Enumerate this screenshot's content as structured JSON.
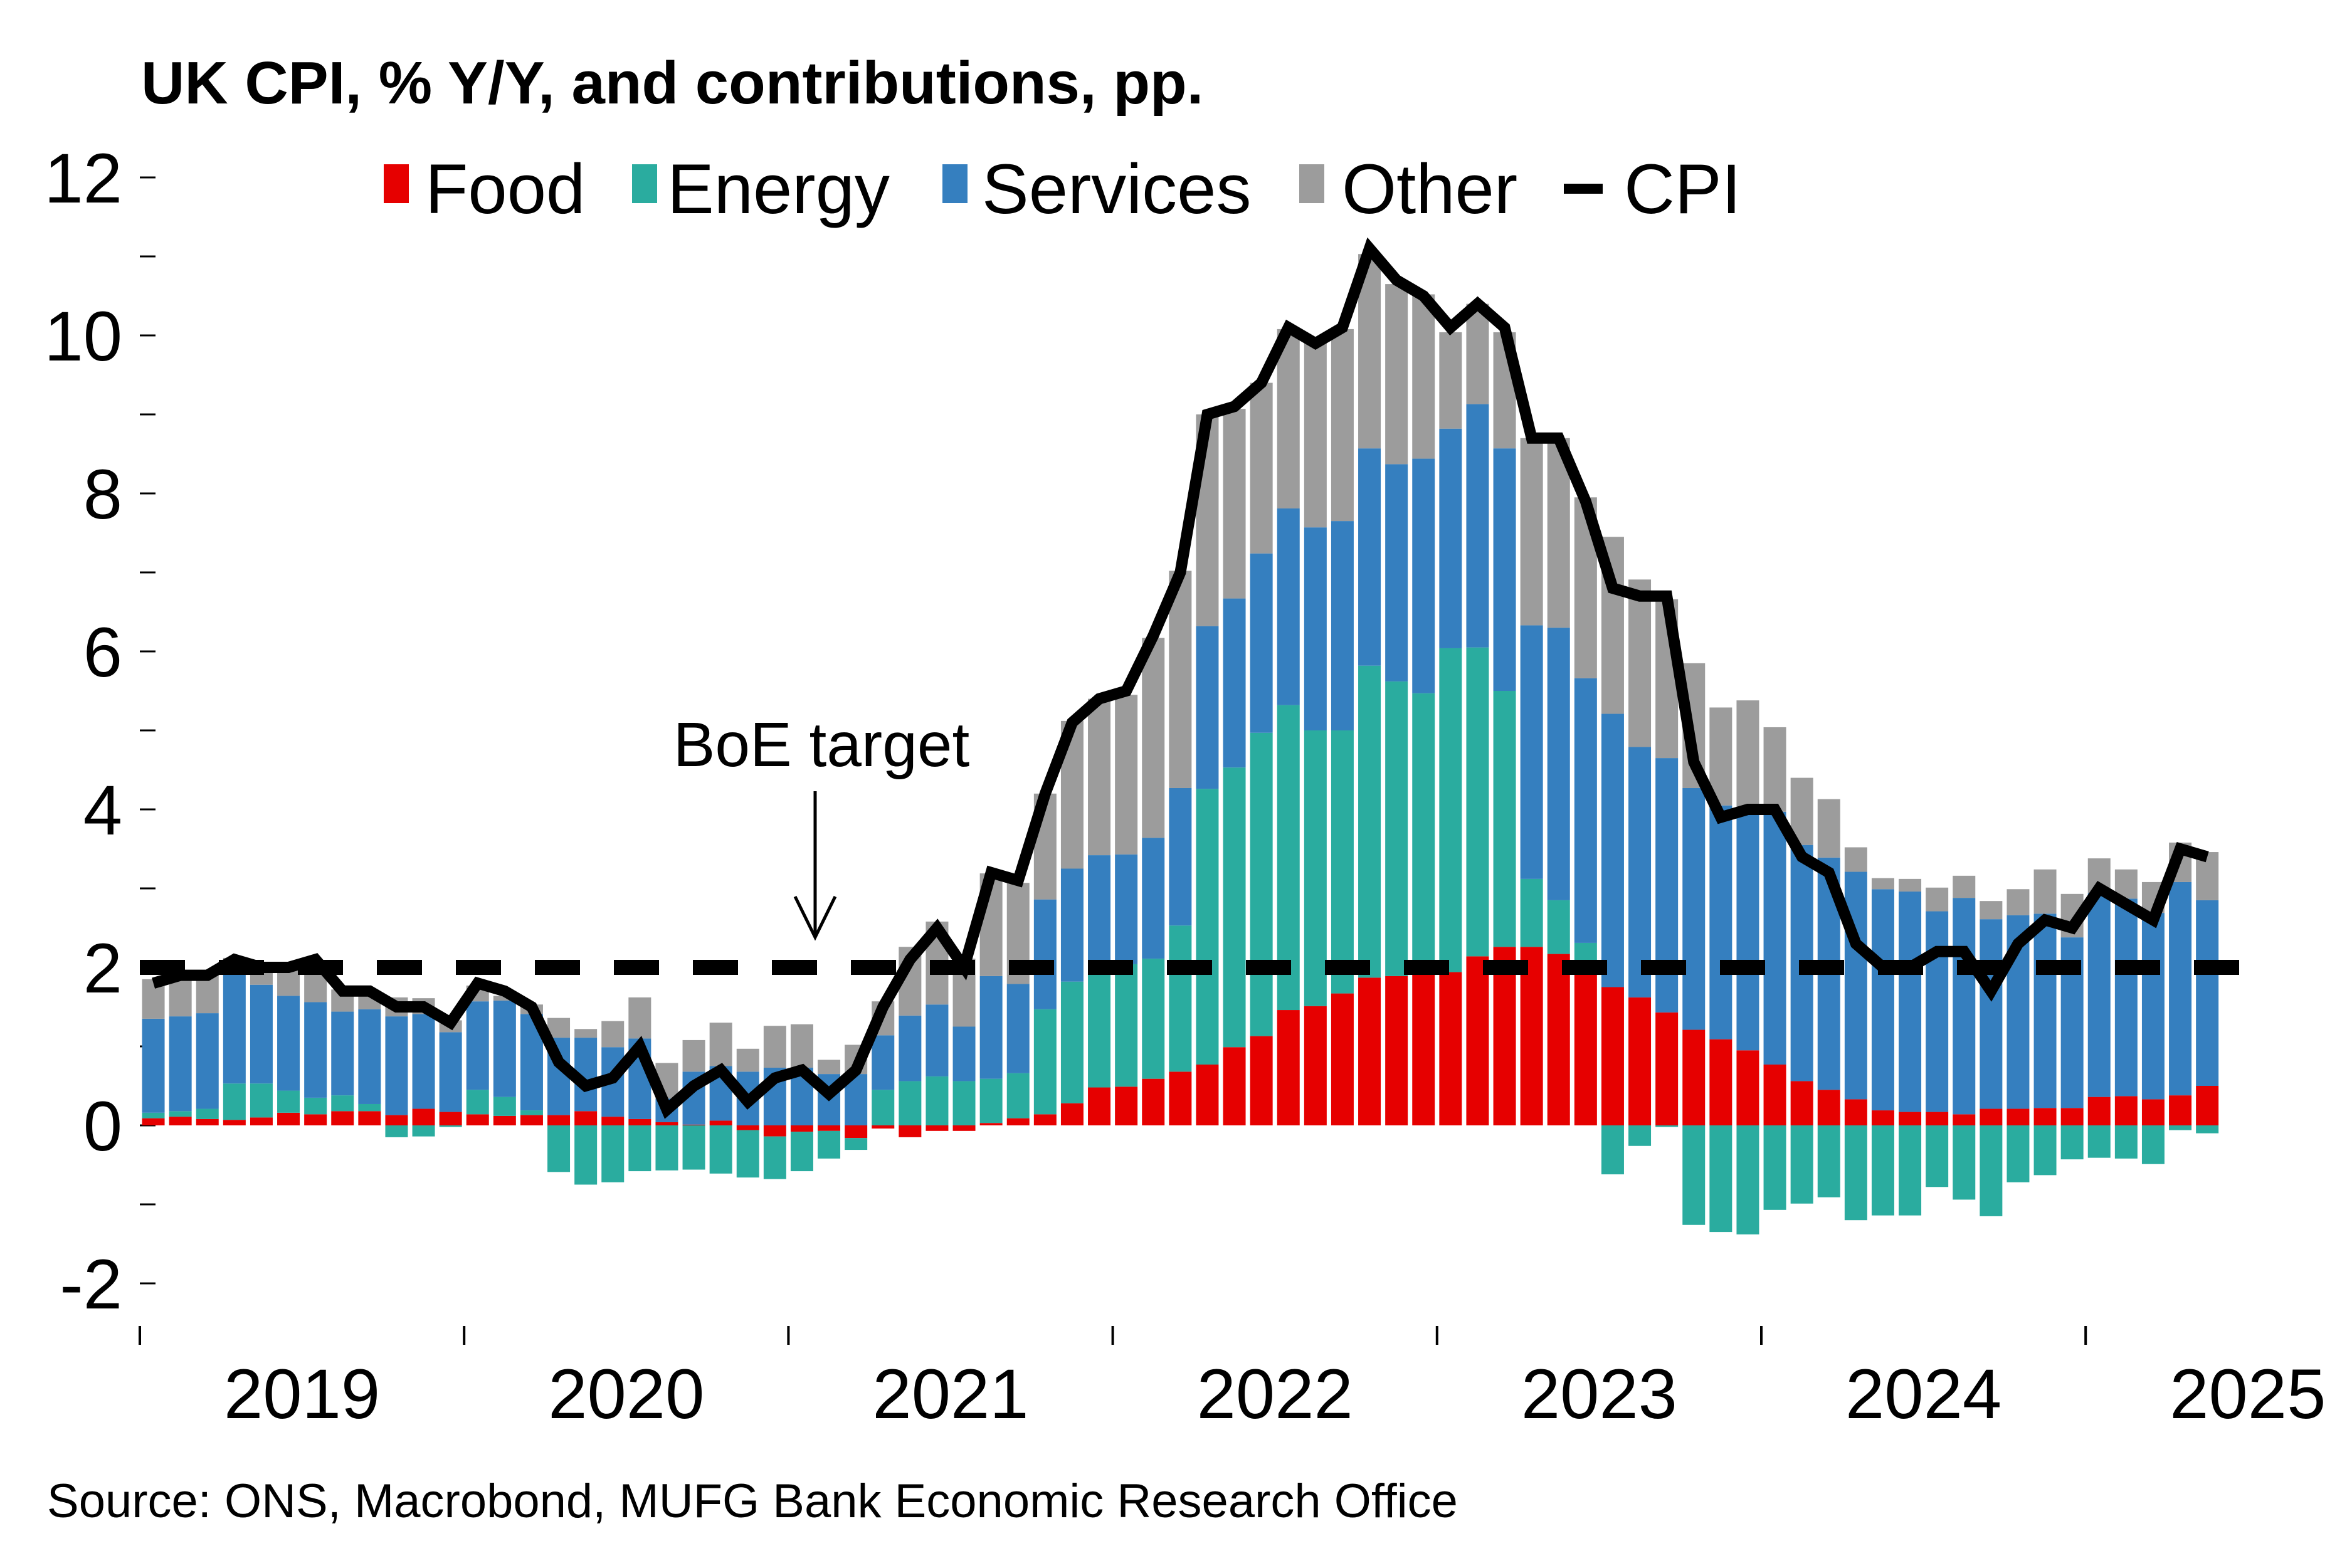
{
  "chart_data": {
    "type": "bar",
    "subtype": "stacked-bar-with-line",
    "title": "UK CPI, % Y/Y, and contributions, pp.",
    "source": "Source: ONS, Macrobond, MUFG Bank Economic Research Office",
    "xlabel": "",
    "ylabel": "",
    "ylim": [
      -2.5,
      12
    ],
    "yticks": [
      -2,
      0,
      2,
      4,
      6,
      8,
      10,
      12
    ],
    "ytick_labels": [
      "-2",
      "0",
      "2",
      "4",
      "6",
      "8",
      "10",
      "12"
    ],
    "x_start": "2019-01",
    "x_end": "2025-05",
    "xtick_labels": [
      "2019",
      "2020",
      "2021",
      "2022",
      "2023",
      "2024",
      "2025"
    ],
    "grid": false,
    "legend": {
      "placement": "top",
      "entries": [
        "Food",
        "Energy",
        "Services",
        "Other",
        "CPI"
      ]
    },
    "colors": {
      "Food": "#e60000",
      "Energy": "#2aac9f",
      "Services": "#357fbf",
      "Other": "#9c9c9c",
      "CPI": "#000000",
      "target": "#000000"
    },
    "reference_line": {
      "label": "BoE target",
      "value": 2,
      "style": "dashed"
    },
    "annotation": {
      "text": "BoE target",
      "points_to": "2020-11"
    },
    "months": [
      "2019-01",
      "2019-02",
      "2019-03",
      "2019-04",
      "2019-05",
      "2019-06",
      "2019-07",
      "2019-08",
      "2019-09",
      "2019-10",
      "2019-11",
      "2019-12",
      "2020-01",
      "2020-02",
      "2020-03",
      "2020-04",
      "2020-05",
      "2020-06",
      "2020-07",
      "2020-08",
      "2020-09",
      "2020-10",
      "2020-11",
      "2020-12",
      "2021-01",
      "2021-02",
      "2021-03",
      "2021-04",
      "2021-05",
      "2021-06",
      "2021-07",
      "2021-08",
      "2021-09",
      "2021-10",
      "2021-11",
      "2021-12",
      "2022-01",
      "2022-02",
      "2022-03",
      "2022-04",
      "2022-05",
      "2022-06",
      "2022-07",
      "2022-08",
      "2022-09",
      "2022-10",
      "2022-11",
      "2022-12",
      "2023-01",
      "2023-02",
      "2023-03",
      "2023-04",
      "2023-05",
      "2023-06",
      "2023-07",
      "2023-08",
      "2023-09",
      "2023-10",
      "2023-11",
      "2023-12",
      "2024-01",
      "2024-02",
      "2024-03",
      "2024-04",
      "2024-05",
      "2024-06",
      "2024-07",
      "2024-08",
      "2024-09",
      "2024-10",
      "2024-11",
      "2024-12",
      "2025-01",
      "2025-02",
      "2025-03",
      "2025-04",
      "2025-05"
    ],
    "series": [
      {
        "name": "Food",
        "kind": "bar",
        "values": [
          0.09,
          0.11,
          0.08,
          0.07,
          0.1,
          0.16,
          0.14,
          0.18,
          0.18,
          0.13,
          0.21,
          0.17,
          0.14,
          0.12,
          0.13,
          0.13,
          0.18,
          0.11,
          0.08,
          0.04,
          0.01,
          0.06,
          -0.06,
          -0.14,
          -0.08,
          -0.07,
          -0.16,
          -0.04,
          -0.15,
          -0.07,
          -0.07,
          0.03,
          0.09,
          0.14,
          0.28,
          0.48,
          0.49,
          0.59,
          0.68,
          0.77,
          0.99,
          1.13,
          1.46,
          1.51,
          1.67,
          1.87,
          1.89,
          1.94,
          1.94,
          2.14,
          2.26,
          2.26,
          2.17,
          2.05,
          1.75,
          1.62,
          1.43,
          1.21,
          1.09,
          0.95,
          0.77,
          0.56,
          0.45,
          0.33,
          0.19,
          0.17,
          0.17,
          0.14,
          0.21,
          0.21,
          0.22,
          0.22,
          0.36,
          0.37,
          0.33,
          0.38,
          0.5
        ]
      },
      {
        "name": "Energy",
        "kind": "bar",
        "values": [
          0.07,
          0.07,
          0.13,
          0.46,
          0.43,
          0.28,
          0.21,
          0.2,
          0.09,
          -0.15,
          -0.14,
          -0.02,
          0.31,
          0.24,
          0.06,
          -0.59,
          -0.75,
          -0.72,
          -0.58,
          -0.57,
          -0.56,
          -0.61,
          -0.6,
          -0.54,
          -0.5,
          -0.35,
          -0.15,
          0.45,
          0.56,
          0.62,
          0.56,
          0.56,
          0.57,
          1.33,
          1.54,
          1.47,
          1.55,
          1.52,
          1.85,
          3.49,
          3.54,
          3.84,
          3.86,
          3.49,
          3.33,
          3.95,
          3.73,
          3.53,
          4.1,
          3.91,
          3.24,
          0.86,
          0.68,
          0.26,
          -0.62,
          -0.26,
          -0.02,
          -1.26,
          -1.35,
          -1.38,
          -1.07,
          -0.99,
          -0.91,
          -1.2,
          -1.14,
          -1.14,
          -0.78,
          -0.94,
          -1.15,
          -0.72,
          -0.63,
          -0.43,
          -0.41,
          -0.42,
          -0.49,
          -0.06,
          -0.1
        ]
      },
      {
        "name": "Services",
        "kind": "bar",
        "values": [
          1.19,
          1.2,
          1.21,
          1.39,
          1.25,
          1.2,
          1.21,
          1.06,
          1.2,
          1.25,
          1.2,
          1.01,
          1.12,
          1.22,
          1.22,
          0.98,
          0.93,
          0.88,
          1.02,
          0.3,
          0.67,
          0.69,
          0.68,
          0.73,
          0.73,
          0.65,
          0.65,
          0.69,
          0.83,
          0.91,
          0.69,
          1.3,
          1.13,
          1.39,
          1.43,
          1.47,
          1.39,
          1.53,
          1.74,
          2.06,
          2.14,
          2.27,
          2.49,
          2.57,
          2.65,
          2.75,
          2.75,
          2.97,
          2.78,
          3.08,
          3.07,
          3.21,
          3.45,
          3.35,
          3.46,
          3.17,
          3.22,
          3.06,
          2.96,
          2.98,
          3.2,
          2.99,
          2.94,
          2.88,
          2.8,
          2.79,
          2.54,
          2.74,
          2.4,
          2.45,
          2.46,
          2.16,
          2.58,
          2.5,
          2.36,
          2.7,
          2.35
        ]
      },
      {
        "name": "Other",
        "kind": "bar",
        "values": [
          0.5,
          0.5,
          0.5,
          0.2,
          0.22,
          0.36,
          0.5,
          0.28,
          0.2,
          0.24,
          0.2,
          0.15,
          0.2,
          0.06,
          0.12,
          0.25,
          0.11,
          0.33,
          0.52,
          0.45,
          0.4,
          0.55,
          0.29,
          0.53,
          0.55,
          0.18,
          0.37,
          0.43,
          0.87,
          1.05,
          0.86,
          1.3,
          1.28,
          1.34,
          1.87,
          1.98,
          2.02,
          2.53,
          2.75,
          2.68,
          2.4,
          2.16,
          2.27,
          2.34,
          2.43,
          2.46,
          2.28,
          2.08,
          1.22,
          1.27,
          1.47,
          2.37,
          2.4,
          2.29,
          2.24,
          2.12,
          2.01,
          1.58,
          1.24,
          1.45,
          1.07,
          0.85,
          0.74,
          0.31,
          0.14,
          0.16,
          0.3,
          0.28,
          0.23,
          0.33,
          0.56,
          0.55,
          0.44,
          0.37,
          0.39,
          0.5,
          0.61
        ]
      },
      {
        "name": "CPI",
        "kind": "line",
        "values": [
          1.8,
          1.9,
          1.9,
          2.1,
          2.0,
          2.0,
          2.1,
          1.7,
          1.7,
          1.5,
          1.5,
          1.3,
          1.8,
          1.7,
          1.5,
          0.8,
          0.5,
          0.6,
          1.0,
          0.2,
          0.5,
          0.7,
          0.3,
          0.6,
          0.7,
          0.4,
          0.7,
          1.5,
          2.1,
          2.5,
          2.0,
          3.2,
          3.1,
          4.2,
          5.1,
          5.4,
          5.5,
          6.2,
          7.0,
          9.0,
          9.1,
          9.4,
          10.1,
          9.9,
          10.1,
          11.1,
          10.7,
          10.5,
          10.1,
          10.4,
          10.1,
          8.7,
          8.7,
          7.9,
          6.8,
          6.7,
          6.7,
          4.6,
          3.9,
          4.0,
          4.0,
          3.4,
          3.2,
          2.3,
          2.0,
          2.0,
          2.2,
          2.2,
          1.7,
          2.3,
          2.6,
          2.5,
          3.0,
          2.8,
          2.6,
          3.5,
          3.4
        ]
      }
    ]
  }
}
